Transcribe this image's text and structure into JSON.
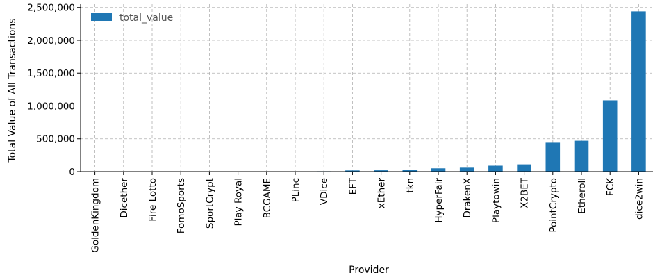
{
  "chart_data": {
    "type": "bar",
    "xlabel": "Provider",
    "ylabel": "Total Value of All Transactions",
    "ylim": [
      0,
      2550000
    ],
    "yticks": [
      0,
      500000,
      1000000,
      1500000,
      2000000,
      2500000
    ],
    "ytick_labels": [
      "0",
      "500,000",
      "1,000,000",
      "1,500,000",
      "2,000,000",
      "2,500,000"
    ],
    "grid": true,
    "legend_position": "top-left",
    "bar_color": "#1f77b4",
    "categories": [
      "GoldenKingdom",
      "Dicether",
      "Fire Lotto",
      "FomoSports",
      "SportCrypt",
      "Play Royal",
      "BCGAME",
      "PLinc",
      "VDice",
      "EFT",
      "xEther",
      "tkn",
      "HyperFair",
      "DrakenX",
      "Playtowin",
      "X2BET",
      "PointCrypto",
      "Etheroll",
      "FCK",
      "dice2win"
    ],
    "series": [
      {
        "name": "total_value",
        "values": [
          1000,
          1500,
          2000,
          2500,
          3000,
          3500,
          4000,
          5000,
          6000,
          18000,
          20000,
          28000,
          50000,
          60000,
          90000,
          110000,
          440000,
          470000,
          1085000,
          2440000
        ]
      }
    ]
  }
}
